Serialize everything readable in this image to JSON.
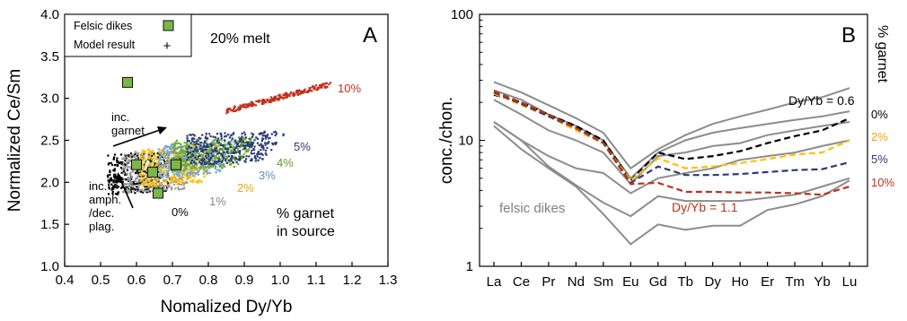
{
  "chart_data": [
    {
      "type": "scatter",
      "panel_letter": "A",
      "xlabel": "Nomalized Dy/Yb",
      "ylabel": "Normalized Ce/Sm",
      "xlim": [
        0.4,
        1.3
      ],
      "ylim": [
        1.0,
        4.0
      ],
      "xticks": [
        0.4,
        0.5,
        0.6,
        0.7,
        0.8,
        0.9,
        1.0,
        1.1,
        1.2,
        1.3
      ],
      "yticks": [
        1.0,
        1.5,
        2.0,
        2.5,
        3.0,
        3.5,
        4.0
      ],
      "xtick_labels": [
        "0.4",
        "0.5",
        "0.6",
        "0.7",
        "0.8",
        "0.9",
        "1.0",
        "1.1",
        "1.2",
        "1.3"
      ],
      "ytick_labels": [
        "1.0",
        "1.5",
        "2.0",
        "2.5",
        "3.0",
        "3.5",
        "4.0"
      ],
      "legend": [
        {
          "label": "Felsic dikes",
          "marker": "green-square"
        },
        {
          "label": "Model result",
          "marker": "plus"
        }
      ],
      "felsic_dikes": [
        {
          "x": 0.575,
          "y": 3.19
        },
        {
          "x": 0.6,
          "y": 2.21
        },
        {
          "x": 0.645,
          "y": 2.12
        },
        {
          "x": 0.66,
          "y": 1.87
        },
        {
          "x": 0.71,
          "y": 2.21
        }
      ],
      "model_bands": [
        {
          "garnet": "0%",
          "color": "#000000",
          "x": [
            0.52,
            0.74
          ],
          "y": [
            1.85,
            2.33
          ]
        },
        {
          "garnet": "1%",
          "color": "#9a9a9a",
          "x": [
            0.56,
            0.79
          ],
          "y": [
            1.87,
            2.36
          ]
        },
        {
          "garnet": "2%",
          "color": "#ffc000",
          "x": [
            0.61,
            0.84
          ],
          "y": [
            1.95,
            2.4
          ]
        },
        {
          "garnet": "3%",
          "color": "#74a7d7",
          "x": [
            0.66,
            0.89
          ],
          "y": [
            2.05,
            2.45
          ]
        },
        {
          "garnet": "4%",
          "color": "#70ad2f",
          "x": [
            0.7,
            0.94
          ],
          "y": [
            2.13,
            2.5
          ]
        },
        {
          "garnet": "5%",
          "color": "#2b3a78",
          "x": [
            0.74,
            1.02
          ],
          "y": [
            2.2,
            2.57
          ]
        },
        {
          "garnet": "10%",
          "color": "#c0301c",
          "x": [
            0.85,
            1.14
          ],
          "y": [
            2.85,
            3.17
          ]
        }
      ],
      "band_labels": [
        "0%",
        "1%",
        "2%",
        "3%",
        "4%",
        "5%",
        "10%"
      ],
      "annotations": {
        "melt": "20% melt",
        "inc_garnet": [
          "inc.",
          "garnet"
        ],
        "inc_amph": [
          "inc.",
          "amph.",
          "/dec.",
          "plag."
        ],
        "garnet_source": [
          "% garnet",
          "in source"
        ]
      }
    },
    {
      "type": "line",
      "panel_letter": "B",
      "ylabel": "conc./chon.",
      "yscale": "log",
      "ylim": [
        1,
        100
      ],
      "ytick_labels": [
        "1",
        "10",
        "100"
      ],
      "categories": [
        "La",
        "Ce",
        "Pr",
        "Nd",
        "Sm",
        "Eu",
        "Gd",
        "Tb",
        "Dy",
        "Ho",
        "Er",
        "Tm",
        "Yb",
        "Lu"
      ],
      "felsic_dikes_series": [
        [
          29,
          24,
          19,
          15,
          11.5,
          6,
          8.5,
          11,
          13.5,
          15.5,
          17.5,
          20,
          22,
          26
        ],
        [
          25,
          21,
          16,
          13,
          10,
          5,
          8,
          10,
          11.5,
          12.5,
          13.5,
          14.5,
          15.5,
          17
        ],
        [
          21,
          16,
          12,
          10,
          8,
          4.5,
          7.5,
          8,
          9,
          9.5,
          11,
          12,
          13,
          14
        ],
        [
          14,
          10,
          7.5,
          6,
          5.5,
          3.8,
          5,
          5.5,
          6,
          7,
          7.5,
          8,
          9,
          10
        ],
        [
          14,
          10,
          6.2,
          4.4,
          3.2,
          2.5,
          3.6,
          3.3,
          3.3,
          3.3,
          3.5,
          3.7,
          4.3,
          5
        ],
        [
          13,
          8.5,
          6,
          4.3,
          2.6,
          1.5,
          2.15,
          1.95,
          2.1,
          2.1,
          2.8,
          3.1,
          3.6,
          4.8
        ]
      ],
      "model_series": [
        {
          "name": "0%",
          "color": "#000000",
          "values": [
            23,
            20,
            16,
            13,
            10,
            4.8,
            8,
            7.1,
            7.5,
            8.2,
            9.5,
            10.8,
            12.0,
            15.0
          ]
        },
        {
          "name": "2%",
          "color": "#ffc000",
          "values": [
            23.5,
            19,
            15.5,
            12,
            9.5,
            4.8,
            7.2,
            6.0,
            6.2,
            6.6,
            7.1,
            7.7,
            8.0,
            10.0
          ]
        },
        {
          "name": "5%",
          "color": "#2b3a78",
          "values": [
            24,
            19.5,
            15.5,
            12.5,
            9.5,
            4.6,
            6.2,
            5.3,
            5.3,
            5.4,
            5.6,
            5.8,
            5.9,
            6.7
          ]
        },
        {
          "name": "10%",
          "color": "#c0301c",
          "values": [
            24.5,
            20,
            16,
            12.5,
            9.5,
            4.5,
            4.6,
            3.9,
            3.9,
            3.85,
            3.85,
            3.8,
            3.7,
            4.3
          ]
        }
      ],
      "right_axis_label": "% garnet",
      "annotations": {
        "dyyb_high": "Dy/Yb = 0.6",
        "dyyb_low": "Dy/Yb = 1.1",
        "felsic": "felsic dikes"
      }
    }
  ]
}
